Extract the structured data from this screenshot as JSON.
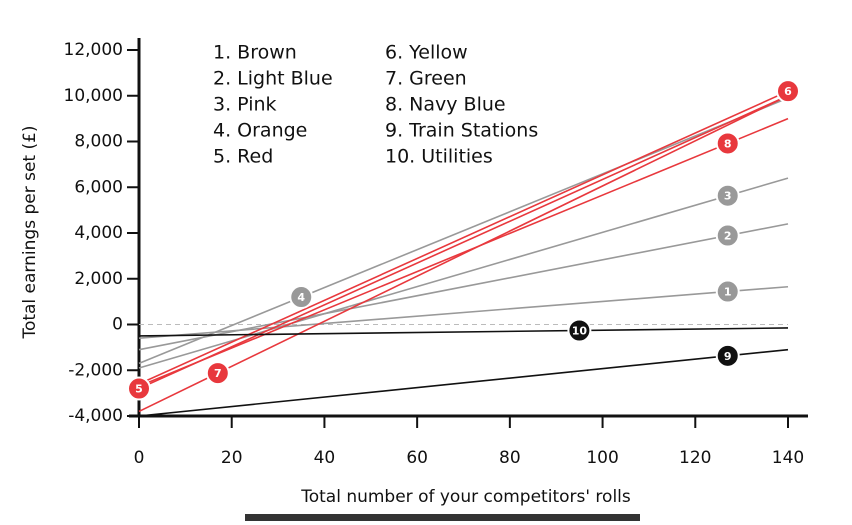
{
  "chart_data": {
    "type": "line",
    "x_label": "Total number of your competitors' rolls",
    "y_label": "Total earnings per set (£)",
    "x": [
      0,
      140
    ],
    "series": [
      {
        "name": "1. Brown",
        "badge": "1",
        "color": "#999999",
        "values": [
          -600,
          1650
        ]
      },
      {
        "name": "2. Light Blue",
        "badge": "2",
        "color": "#999999",
        "values": [
          -1100,
          4400
        ]
      },
      {
        "name": "3. Pink",
        "badge": "3",
        "color": "#999999",
        "values": [
          -1900,
          6400
        ]
      },
      {
        "name": "4. Orange",
        "badge": "4",
        "color": "#999999",
        "values": [
          -1700,
          9900
        ]
      },
      {
        "name": "5. Red",
        "badge": "5",
        "color": "#e8383d",
        "values": [
          -2800,
          10000
        ]
      },
      {
        "name": "6. Yellow",
        "badge": "6",
        "color": "#e8383d",
        "values": [
          -2600,
          10200
        ]
      },
      {
        "name": "7. Green",
        "badge": "7",
        "color": "#e8383d",
        "values": [
          -3800,
          10000
        ]
      },
      {
        "name": "8. Navy Blue",
        "badge": "8",
        "color": "#e8383d",
        "values": [
          -2700,
          9000
        ]
      },
      {
        "name": "9. Train Stations",
        "badge": "9",
        "color": "#111111",
        "values": [
          -4000,
          -1100
        ]
      },
      {
        "name": "10. Utilities",
        "badge": "10",
        "color": "#111111",
        "values": [
          -500,
          -150
        ]
      }
    ],
    "xlim": [
      0,
      140
    ],
    "xticks": [
      0,
      20,
      40,
      60,
      80,
      100,
      120,
      140
    ],
    "ylim": [
      -4000,
      12000
    ],
    "yticks": [
      {
        "value": -4000,
        "label": "-4,000"
      },
      {
        "value": -2000,
        "label": "-2,000"
      },
      0,
      {
        "value": 2000,
        "label": "2,000"
      },
      {
        "value": 4000,
        "label": "4,000"
      },
      {
        "value": 6000,
        "label": "6,000"
      },
      {
        "value": 8000,
        "label": "8,000"
      },
      {
        "value": 10000,
        "label": "10,000"
      },
      {
        "value": 12000,
        "label": "12,000"
      }
    ],
    "zero_line": true
  }
}
